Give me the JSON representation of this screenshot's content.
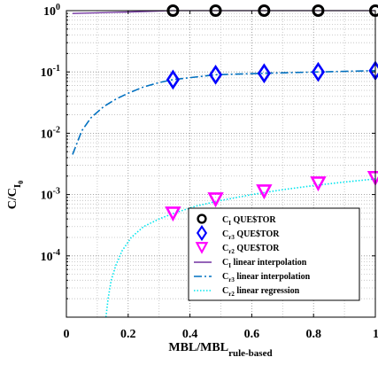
{
  "chart_data": {
    "type": "scatter",
    "title": "",
    "xlabel": {
      "main": "MBL/MBL",
      "sub": "rule-based"
    },
    "ylabel": {
      "main": "C/C",
      "sub": "I",
      "subsub": "0"
    },
    "xscale": "linear",
    "yscale": "log",
    "xlim": [
      0,
      1
    ],
    "ylim": [
      1e-05,
      1
    ],
    "x_ticks": [
      0,
      0.2,
      0.4,
      0.6,
      0.8,
      1
    ],
    "x_tick_labels": [
      "0",
      "0.2",
      "0.4",
      "0.6",
      "0.8",
      "1"
    ],
    "y_ticks": [
      0.0001,
      0.001,
      0.01,
      0.1,
      1
    ],
    "y_tick_labels": [
      {
        "base": "10",
        "exp": "-4"
      },
      {
        "base": "10",
        "exp": "-3"
      },
      {
        "base": "10",
        "exp": "-2"
      },
      {
        "base": "10",
        "exp": "-1"
      },
      {
        "base": "10",
        "exp": "0"
      }
    ],
    "grid": true,
    "legend_position": "bottom-right",
    "series": [
      {
        "name": {
          "main": "C",
          "sub": "I",
          "rest": " QUE$TOR"
        },
        "kind": "markers",
        "marker": "circle",
        "color": "#000000",
        "x": [
          0.345,
          0.483,
          0.64,
          0.815,
          1.0
        ],
        "y": [
          1.0,
          1.0,
          1.0,
          1.0,
          1.0
        ]
      },
      {
        "name": {
          "main": "C",
          "sub": "r3",
          "rest": " QUE$TOR"
        },
        "kind": "markers",
        "marker": "diamond",
        "color": "#0000ff",
        "x": [
          0.345,
          0.483,
          0.64,
          0.815,
          1.0
        ],
        "y": [
          0.075,
          0.09,
          0.095,
          0.1,
          0.105
        ]
      },
      {
        "name": {
          "main": "C",
          "sub": "r2",
          "rest": " QUE$TOR"
        },
        "kind": "markers",
        "marker": "triangle-down",
        "color": "#ff00ff",
        "x": [
          0.345,
          0.483,
          0.64,
          0.815,
          1.0
        ],
        "y": [
          0.0005,
          0.00085,
          0.00115,
          0.00155,
          0.0019
        ]
      },
      {
        "name": {
          "main": "C",
          "sub": "I",
          "rest": " linear interpolation"
        },
        "kind": "line",
        "dash": "solid",
        "color": "#7030a0",
        "x": [
          0.02,
          0.1,
          0.2,
          0.345,
          0.483,
          0.64,
          0.815,
          1.0
        ],
        "y": [
          0.9,
          0.92,
          0.95,
          1.0,
          1.0,
          1.0,
          1.0,
          1.0
        ]
      },
      {
        "name": {
          "main": "C",
          "sub": "r3",
          "rest": " linear interpolation"
        },
        "kind": "line",
        "dash": "dashdot",
        "color": "#0070c0",
        "x": [
          0.02,
          0.05,
          0.08,
          0.12,
          0.16,
          0.2,
          0.25,
          0.3,
          0.345,
          0.483,
          0.64,
          0.815,
          1.0
        ],
        "y": [
          0.0045,
          0.011,
          0.018,
          0.027,
          0.036,
          0.045,
          0.057,
          0.067,
          0.075,
          0.09,
          0.095,
          0.1,
          0.105
        ]
      },
      {
        "name": {
          "main": "C",
          "sub": "r2",
          "rest": " linear regression"
        },
        "kind": "line",
        "dash": "dotted",
        "color": "#00e5ee",
        "x": [
          0.128,
          0.135,
          0.145,
          0.16,
          0.18,
          0.21,
          0.25,
          0.3,
          0.35,
          0.42,
          0.5,
          0.6,
          0.7,
          0.8,
          0.9,
          1.0
        ],
        "y": [
          1e-05,
          2e-05,
          4e-05,
          7e-05,
          0.00012,
          0.0002,
          0.0003,
          0.0004,
          0.0005,
          0.00065,
          0.0008,
          0.001,
          0.0012,
          0.0014,
          0.0016,
          0.0018
        ]
      }
    ]
  }
}
